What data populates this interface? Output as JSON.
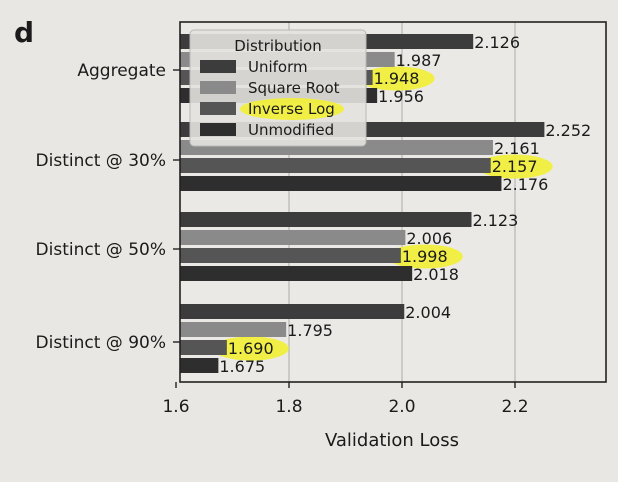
{
  "panel_label": "d",
  "chart_data": {
    "type": "bar",
    "orientation": "horizontal",
    "title": "",
    "xlabel": "Validation Loss",
    "ylabel": "",
    "xlim": [
      1.6,
      2.37
    ],
    "xticks": [
      1.6,
      1.8,
      2.0,
      2.2
    ],
    "xtick_labels": [
      "1.6",
      "1.8",
      "2.0",
      "2.2"
    ],
    "grid": "x",
    "categories": [
      "Aggregate",
      "Distinct @ 30%",
      "Distinct @ 50%",
      "Distinct @ 90%"
    ],
    "series": [
      {
        "name": "Uniform",
        "color": "#3c3c3c",
        "values": [
          2.126,
          2.252,
          2.123,
          2.004
        ],
        "labels": [
          "2.126",
          "2.252",
          "2.123",
          "2.004"
        ]
      },
      {
        "name": "Square Root",
        "color": "#8a8a8a",
        "values": [
          1.987,
          2.161,
          2.006,
          1.795
        ],
        "labels": [
          "1.987",
          "2.161",
          "2.006",
          "1.795"
        ]
      },
      {
        "name": "Inverse Log",
        "color": "#555555",
        "values": [
          1.948,
          2.157,
          1.998,
          1.69
        ],
        "labels": [
          "1.948",
          "2.157",
          "1.998",
          "1.690"
        ]
      },
      {
        "name": "Unmodified",
        "color": "#2e2e2e",
        "values": [
          1.956,
          2.176,
          2.018,
          1.675
        ],
        "labels": [
          "1.956",
          "2.176",
          "2.018",
          "1.675"
        ]
      }
    ],
    "highlighted_series": "Inverse Log",
    "highlight_color": "#f2f034",
    "legend": {
      "title": "Distribution",
      "placement": "top-left"
    }
  }
}
